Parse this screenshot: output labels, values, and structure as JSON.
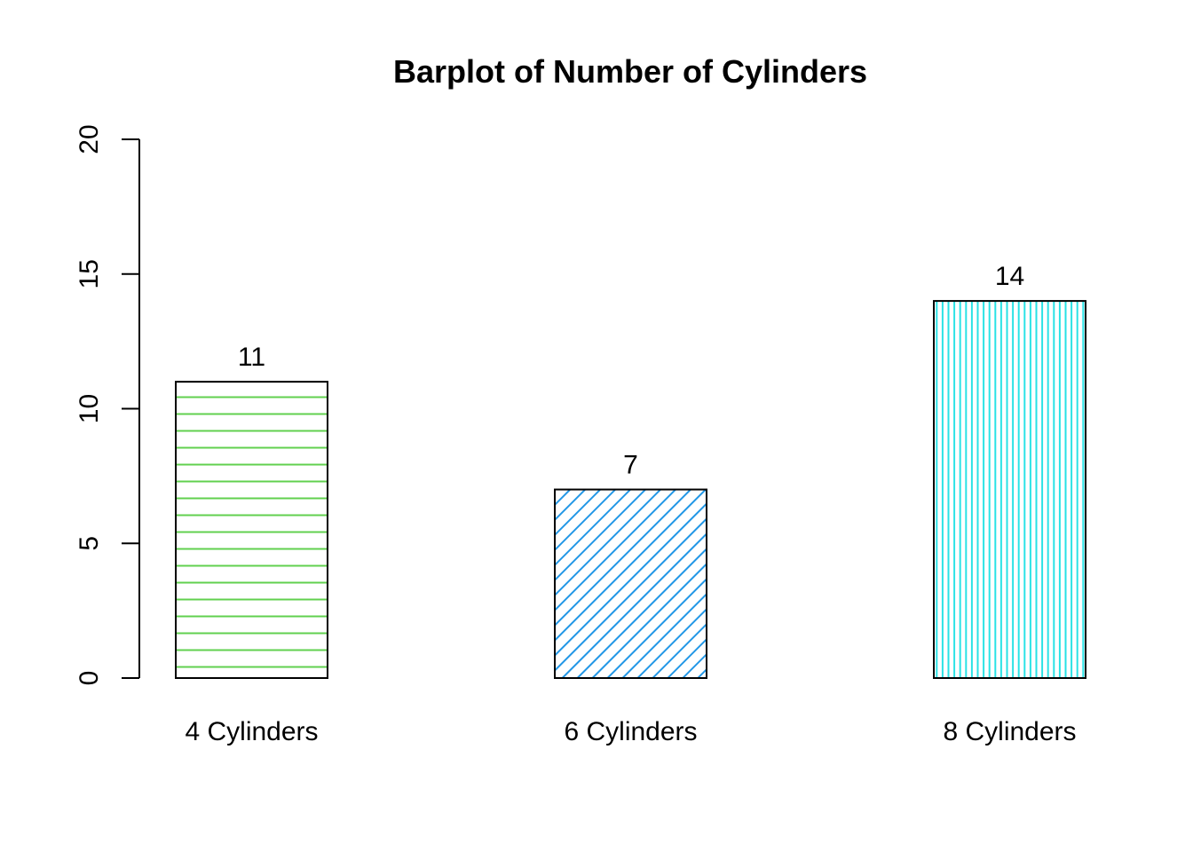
{
  "chart_data": {
    "type": "bar",
    "title": "Barplot of Number of Cylinders",
    "xlabel": "",
    "ylabel": "",
    "categories": [
      "4 Cylinders",
      "6 Cylinders",
      "8 Cylinders"
    ],
    "values": [
      11,
      7,
      14
    ],
    "data_labels": [
      "11",
      "7",
      "14"
    ],
    "ylim": [
      0,
      20
    ],
    "yticks": [
      0,
      5,
      10,
      15,
      20
    ],
    "ytick_labels": [
      "0",
      "5",
      "10",
      "15",
      "20"
    ],
    "grid": false,
    "legend": "none",
    "bar_colors": [
      "#61D04F",
      "#2297E6",
      "#28E2E5"
    ],
    "bar_patterns": [
      "horizontal-lines",
      "diagonal-lines",
      "vertical-lines"
    ],
    "outline_color": "#000000",
    "background": "#ffffff"
  }
}
